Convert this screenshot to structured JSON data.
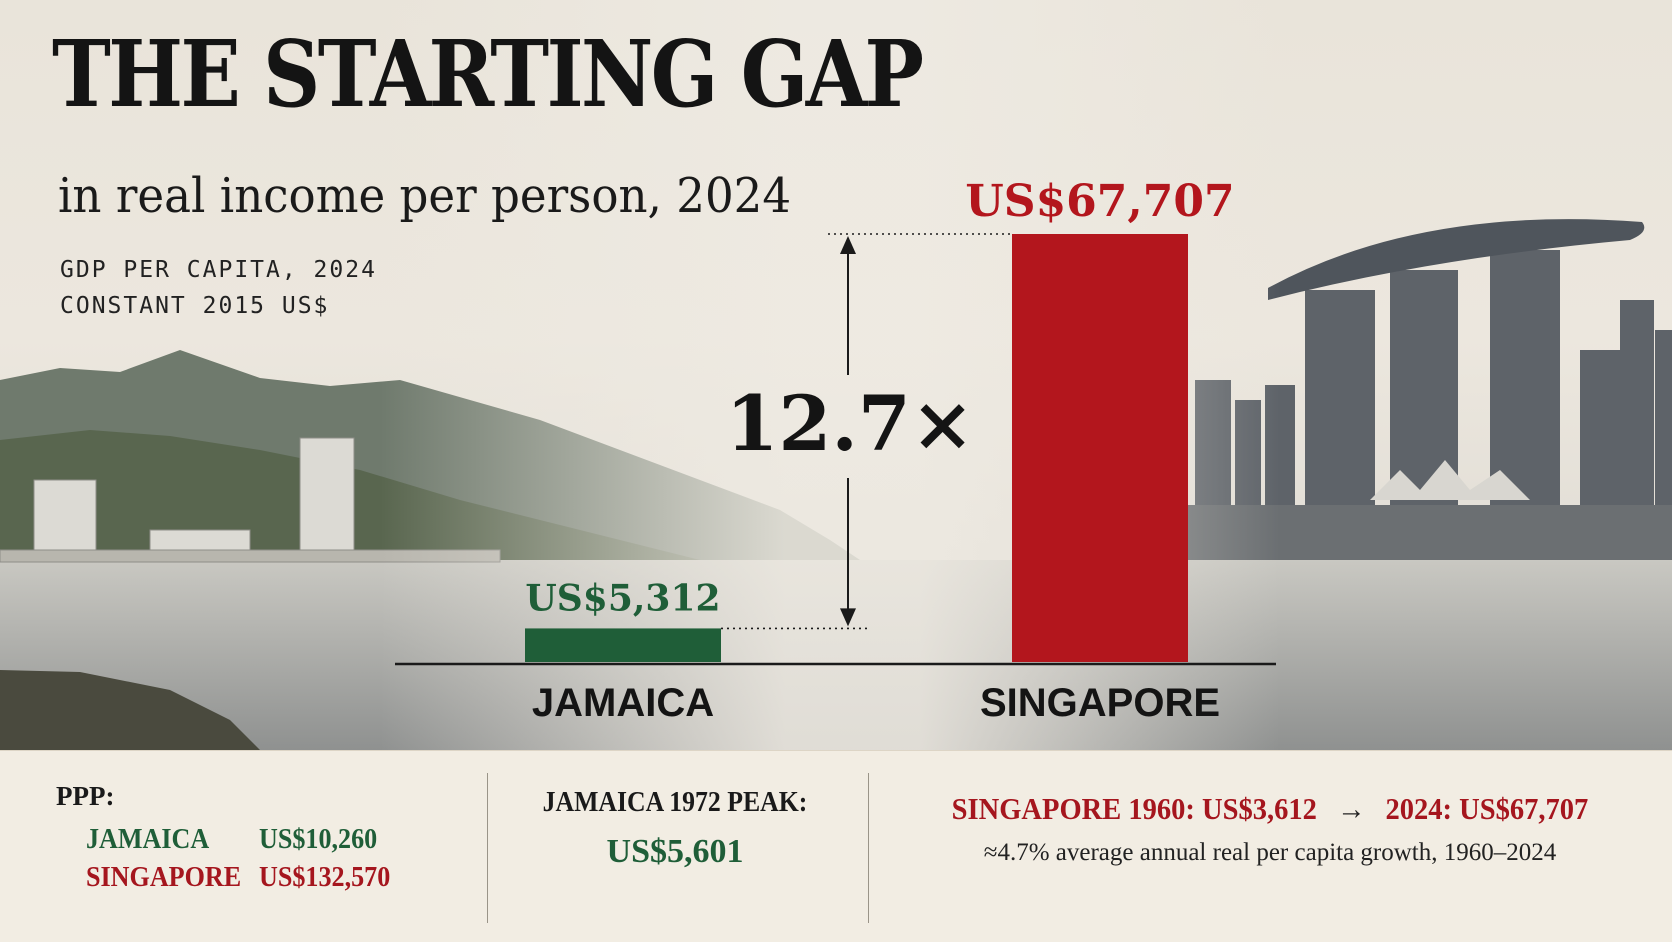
{
  "title": "THE STARTING GAP",
  "subtitle": "in real income per person, 2024",
  "measure_lines": [
    "GDP PER CAPITA, 2024",
    "CONSTANT 2015 US$"
  ],
  "colors": {
    "jamaica": "#1f5e38",
    "singapore": "#b3161d",
    "text": "#141414"
  },
  "chart_data": {
    "type": "bar",
    "title": "THE STARTING GAP",
    "subtitle": "in real income per person, 2024",
    "categories": [
      "JAMAICA",
      "SINGAPORE"
    ],
    "values": [
      5312,
      67707
    ],
    "value_labels": [
      "US$5,312",
      "US$67,707"
    ],
    "colors": [
      "#1f5e38",
      "#b3161d"
    ],
    "ratio_label": "12.7×",
    "ylim": [
      0,
      67707
    ],
    "grid": false
  },
  "footer": {
    "ppp": {
      "heading": "PPP:",
      "rows": [
        {
          "country": "JAMAICA",
          "value": "US$10,260"
        },
        {
          "country": "SINGAPORE",
          "value": "US$132,570"
        }
      ]
    },
    "peak": {
      "label": "JAMAICA 1972 PEAK:",
      "value": "US$5,601"
    },
    "singapore": {
      "start_label": "SINGAPORE 1960:",
      "start_value": "US$3,612",
      "arrow": "→",
      "end_label": "2024:",
      "end_value": "US$67,707",
      "growth_note": "≈4.7% average annual real per capita growth, 1960–2024"
    }
  }
}
